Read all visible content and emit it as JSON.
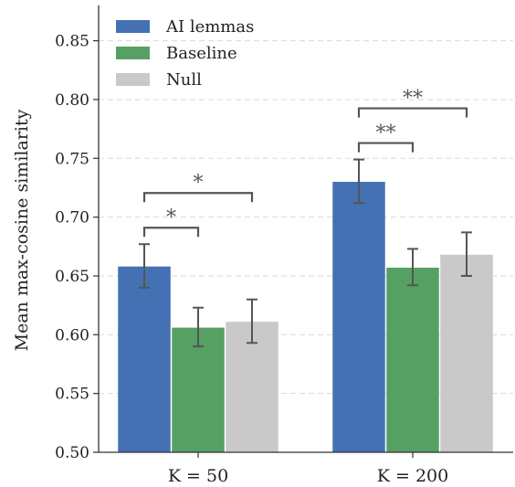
{
  "chart_data": {
    "type": "bar",
    "ylabel": "Mean max-cosine similarity",
    "xlabel": "",
    "ylim": [
      0.5,
      0.88
    ],
    "yticks": [
      "0.50",
      "0.55",
      "0.60",
      "0.65",
      "0.70",
      "0.75",
      "0.80",
      "0.85"
    ],
    "grid": "horizontal dashed",
    "legend_position": "top-left",
    "categories": [
      "K = 50",
      "K = 200"
    ],
    "series": [
      {
        "name": "AI lemmas",
        "color": "#4471b3",
        "values": [
          0.658,
          0.73
        ],
        "error": [
          [
            0.64,
            0.677
          ],
          [
            0.712,
            0.749
          ]
        ]
      },
      {
        "name": "Baseline",
        "color": "#56a064",
        "values": [
          0.606,
          0.657
        ],
        "error": [
          [
            0.59,
            0.623
          ],
          [
            0.642,
            0.673
          ]
        ]
      },
      {
        "name": "Null",
        "color": "#c9c9c9",
        "values": [
          0.611,
          0.668
        ],
        "error": [
          [
            0.593,
            0.63
          ],
          [
            0.65,
            0.687
          ]
        ]
      }
    ],
    "significance": [
      {
        "category": 0,
        "from": 0,
        "to": 1,
        "label": "*"
      },
      {
        "category": 0,
        "from": 0,
        "to": 2,
        "label": "*"
      },
      {
        "category": 1,
        "from": 0,
        "to": 1,
        "label": "**"
      },
      {
        "category": 1,
        "from": 0,
        "to": 2,
        "label": "**"
      }
    ]
  }
}
